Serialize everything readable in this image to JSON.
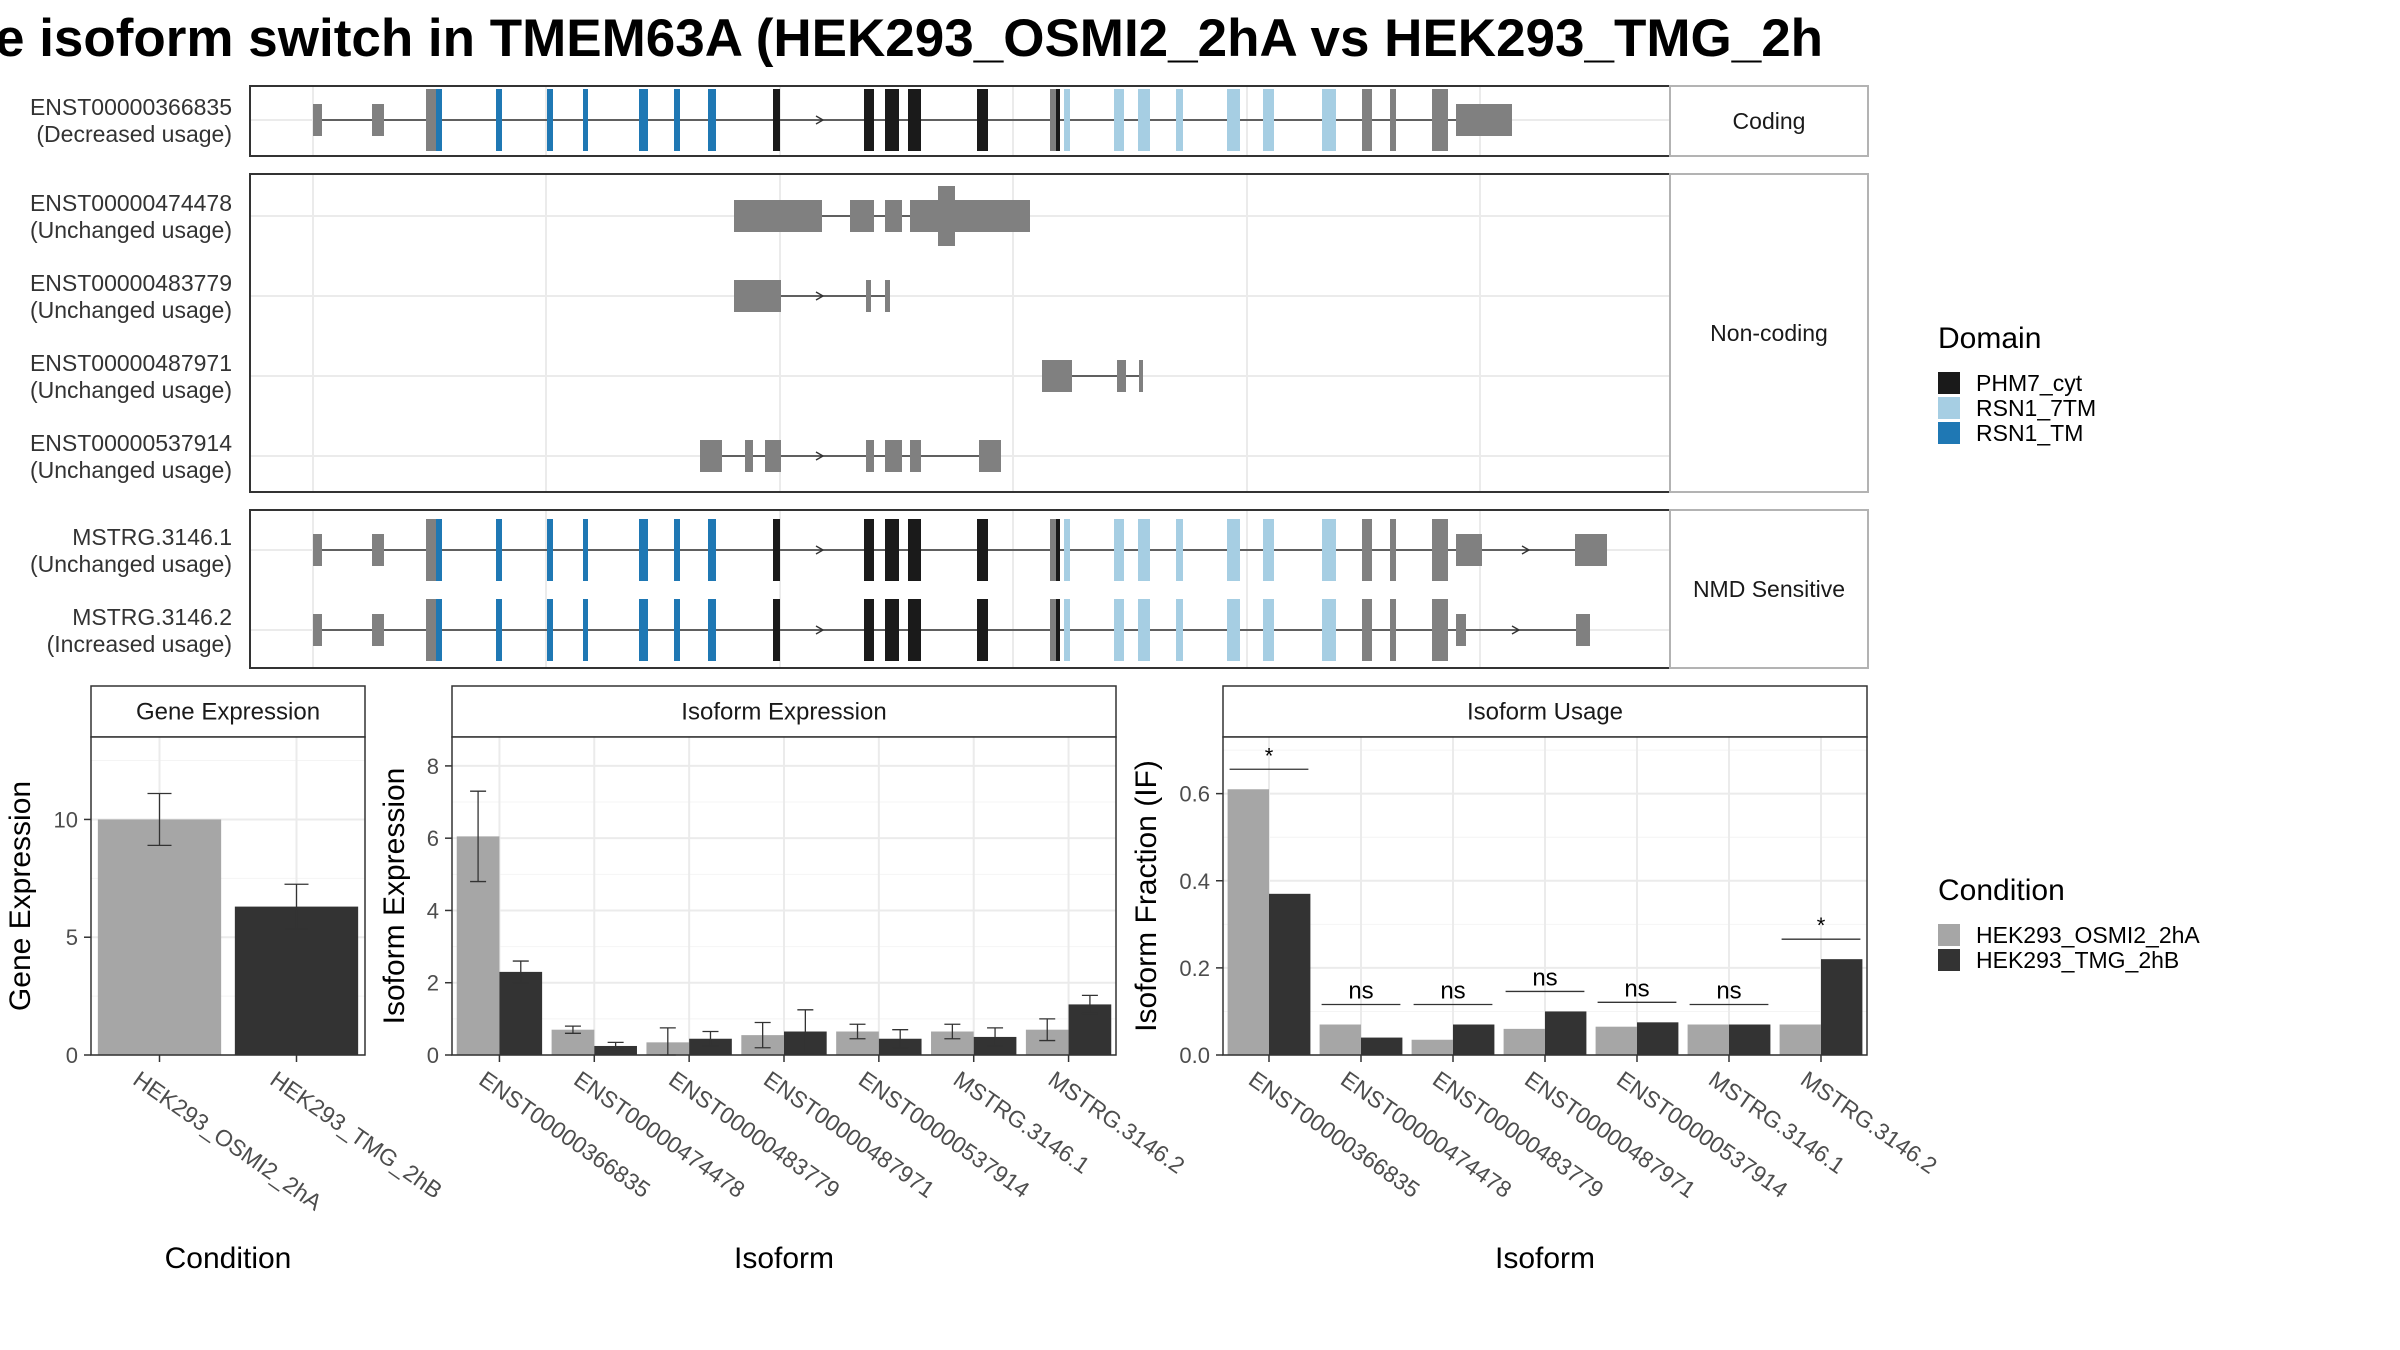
{
  "title": "e isoform switch in TMEM63A (HEK293_OSMI2_2hA vs HEK293_TMG_2h",
  "structure_panel": {
    "groups": [
      {
        "label": "Coding",
        "isoforms": [
          {
            "id": "ENST00000366835",
            "usage": "(Decreased usage)",
            "style": "full_coding"
          }
        ]
      },
      {
        "label": "Non-coding",
        "isoforms": [
          {
            "id": "ENST00000474478",
            "usage": "(Unchanged usage)",
            "style": "nc1"
          },
          {
            "id": "ENST00000483779",
            "usage": "(Unchanged usage)",
            "style": "nc2"
          },
          {
            "id": "ENST00000487971",
            "usage": "(Unchanged usage)",
            "style": "nc3"
          },
          {
            "id": "ENST00000537914",
            "usage": "(Unchanged usage)",
            "style": "nc4"
          }
        ]
      },
      {
        "label": "NMD Sensitive",
        "isoforms": [
          {
            "id": "MSTRG.3146.1",
            "usage": "(Unchanged usage)",
            "style": "nmd1"
          },
          {
            "id": "MSTRG.3146.2",
            "usage": "(Increased usage)",
            "style": "nmd2"
          }
        ]
      }
    ]
  },
  "legend_domain": {
    "title": "Domain",
    "items": [
      {
        "label": "PHM7_cyt",
        "color": "#1a1a1a"
      },
      {
        "label": "RSN1_7TM",
        "color": "#a6cee3"
      },
      {
        "label": "RSN1_TM",
        "color": "#1f78b4"
      }
    ]
  },
  "legend_condition": {
    "title": "Condition",
    "items": [
      {
        "label": "HEK293_OSMI2_2hA",
        "color": "#a6a6a6"
      },
      {
        "label": "HEK293_TMG_2hB",
        "color": "#333333"
      }
    ]
  },
  "chart_data": [
    {
      "type": "bar",
      "title": "Gene Expression",
      "xlabel": "Condition",
      "ylabel": "Gene Expression",
      "categories": [
        "HEK293_OSMI2_2hA",
        "HEK293_TMG_2hB"
      ],
      "values": [
        10.0,
        6.3
      ],
      "errors": [
        1.1,
        0.95
      ],
      "ylim": [
        0,
        13.5
      ],
      "yticks": [
        0,
        5,
        10
      ]
    },
    {
      "type": "bar",
      "title": "Isoform Expression",
      "xlabel": "Isoform",
      "ylabel": "Isoform Expression",
      "categories": [
        "ENST00000366835",
        "ENST00000474478",
        "ENST00000483779",
        "ENST00000487971",
        "ENST00000537914",
        "MSTRG.3146.1",
        "MSTRG.3146.2"
      ],
      "series": [
        {
          "name": "HEK293_OSMI2_2hA",
          "values": [
            6.05,
            0.7,
            0.35,
            0.55,
            0.65,
            0.65,
            0.7
          ],
          "errors": [
            1.25,
            0.1,
            0.4,
            0.35,
            0.2,
            0.2,
            0.3
          ]
        },
        {
          "name": "HEK293_TMG_2hB",
          "values": [
            2.3,
            0.25,
            0.45,
            0.65,
            0.45,
            0.5,
            1.4
          ],
          "errors": [
            0.3,
            0.1,
            0.2,
            0.6,
            0.25,
            0.25,
            0.25
          ]
        }
      ],
      "ylim": [
        0,
        8.8
      ],
      "yticks": [
        0,
        2,
        4,
        6,
        8
      ]
    },
    {
      "type": "bar",
      "title": "Isoform Usage",
      "xlabel": "Isoform",
      "ylabel": "Isoform Fraction (IF)",
      "categories": [
        "ENST00000366835",
        "ENST00000474478",
        "ENST00000483779",
        "ENST00000487971",
        "ENST00000537914",
        "MSTRG.3146.1",
        "MSTRG.3146.2"
      ],
      "series": [
        {
          "name": "HEK293_OSMI2_2hA",
          "values": [
            0.61,
            0.07,
            0.035,
            0.06,
            0.065,
            0.07,
            0.07
          ]
        },
        {
          "name": "HEK293_TMG_2hB",
          "values": [
            0.37,
            0.04,
            0.07,
            0.1,
            0.075,
            0.07,
            0.22
          ]
        }
      ],
      "significance": [
        "*",
        "ns",
        "ns",
        "ns",
        "ns",
        "ns",
        "*"
      ],
      "ylim": [
        0,
        0.73
      ],
      "yticks": [
        0.0,
        0.2,
        0.4,
        0.6
      ]
    }
  ]
}
